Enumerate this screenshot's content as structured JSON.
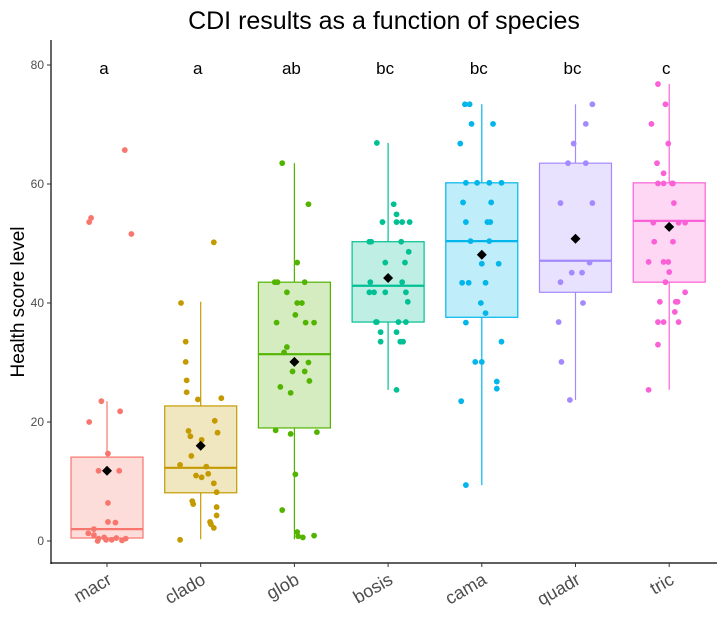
{
  "chart_data": {
    "type": "box",
    "title": "CDI results as a function of species",
    "xlabel": "",
    "ylabel": "Health score level",
    "ylim": [
      -4,
      84
    ],
    "yticks": [
      0,
      20,
      40,
      60,
      80
    ],
    "grid": false,
    "legend": "none",
    "categories": [
      "macr",
      "clado",
      "glob",
      "bosis",
      "cama",
      "quadr",
      "tric"
    ],
    "group_letters": [
      "a",
      "a",
      "ab",
      "bc",
      "bc",
      "bc",
      "c"
    ],
    "letters_y": 79,
    "colors": [
      "#F8766D",
      "#C49A00",
      "#53B400",
      "#00C094",
      "#00B6EB",
      "#A58AFF",
      "#FB61D7"
    ],
    "mean_marker_color": "#000000",
    "boxes": [
      {
        "name": "macr",
        "whisker_low": 0,
        "q1": 0.5,
        "median": 2,
        "q3": 14.1,
        "whisker_high": 23.5,
        "mean": 11.8
      },
      {
        "name": "clado",
        "whisker_low": 0.3,
        "q1": 8.1,
        "median": 12.3,
        "q3": 22.7,
        "whisker_high": 40.2,
        "mean": 16
      },
      {
        "name": "glob",
        "whisker_low": 0.3,
        "q1": 19,
        "median": 31.4,
        "q3": 43.5,
        "whisker_high": 63.5,
        "mean": 30.1
      },
      {
        "name": "bosis",
        "whisker_low": 25.4,
        "q1": 36.8,
        "median": 42.9,
        "q3": 50.3,
        "whisker_high": 66.9,
        "mean": 44.2
      },
      {
        "name": "cama",
        "whisker_low": 9.4,
        "q1": 37.6,
        "median": 50.4,
        "q3": 60.2,
        "whisker_high": 73.4,
        "mean": 48.1
      },
      {
        "name": "quadr",
        "whisker_low": 23.7,
        "q1": 41.8,
        "median": 47.1,
        "q3": 63.5,
        "whisker_high": 73.4,
        "mean": 50.8
      },
      {
        "name": "tric",
        "whisker_low": 25.4,
        "q1": 43.5,
        "median": 53.8,
        "q3": 60.2,
        "whisker_high": 76.8,
        "mean": 52.8
      }
    ],
    "points": [
      [
        [
          0.19,
          65.7
        ],
        [
          -0.17,
          54.3
        ],
        [
          -0.19,
          53.6
        ],
        [
          0.26,
          51.6
        ],
        [
          -0.06,
          23.5
        ],
        [
          0.14,
          21.8
        ],
        [
          -0.19,
          20
        ],
        [
          0.01,
          14.7
        ],
        [
          -0.09,
          11.8
        ],
        [
          0.13,
          11.8
        ],
        [
          0.01,
          6.4
        ],
        [
          0.01,
          3.2
        ],
        [
          0.09,
          3.1
        ],
        [
          -0.14,
          2
        ],
        [
          -0.2,
          1.3
        ],
        [
          -0.14,
          1
        ],
        [
          -0.09,
          0.4
        ],
        [
          -0.03,
          0.6
        ],
        [
          0.05,
          0.2
        ],
        [
          0.1,
          0.5
        ],
        [
          0.16,
          0.1
        ],
        [
          0.2,
          0.4
        ],
        [
          -0.01,
          0.2
        ],
        [
          -0.1,
          0
        ]
      ],
      [
        [
          0.14,
          50.2
        ],
        [
          -0.21,
          40
        ],
        [
          -0.16,
          33.5
        ],
        [
          -0.16,
          30.1
        ],
        [
          -0.15,
          27
        ],
        [
          -0.15,
          25
        ],
        [
          0.22,
          24
        ],
        [
          -0.03,
          23.8
        ],
        [
          0.15,
          20.2
        ],
        [
          -0.13,
          18.5
        ],
        [
          -0.11,
          17.6
        ],
        [
          0.18,
          18.2
        ],
        [
          0.01,
          17
        ],
        [
          -0.1,
          14.3
        ],
        [
          -0.22,
          12.8
        ],
        [
          0.06,
          12.5
        ],
        [
          0.08,
          11.3
        ],
        [
          -0.05,
          11
        ],
        [
          0.01,
          10.7
        ],
        [
          0.14,
          9.7
        ],
        [
          0.17,
          8.2
        ],
        [
          0.17,
          5.7
        ],
        [
          -0.09,
          6.7
        ],
        [
          -0.08,
          6.2
        ],
        [
          0.17,
          4.3
        ],
        [
          0.1,
          3.2
        ],
        [
          0.11,
          2.8
        ],
        [
          0.14,
          2.2
        ],
        [
          -0.22,
          0.2
        ]
      ],
      [
        [
          -0.13,
          63.5
        ],
        [
          0.15,
          56.6
        ],
        [
          0.03,
          46.8
        ],
        [
          -0.21,
          43.5
        ],
        [
          -0.18,
          43.5
        ],
        [
          0.11,
          43.5
        ],
        [
          -0.08,
          41.8
        ],
        [
          0.03,
          40
        ],
        [
          0.08,
          40
        ],
        [
          0.01,
          38
        ],
        [
          -0.19,
          36.7
        ],
        [
          0.12,
          36.7
        ],
        [
          0.21,
          36.7
        ],
        [
          -0.08,
          32.6
        ],
        [
          -0.11,
          31.7
        ],
        [
          0.15,
          30
        ],
        [
          -0.02,
          28.5
        ],
        [
          0.11,
          28.5
        ],
        [
          0.16,
          26.9
        ],
        [
          -0.15,
          25.9
        ],
        [
          -0.04,
          24.9
        ],
        [
          -0.2,
          18.6
        ],
        [
          -0.04,
          18
        ],
        [
          0.24,
          18.3
        ],
        [
          0.01,
          11.2
        ],
        [
          -0.13,
          5.2
        ],
        [
          0.03,
          1.5
        ],
        [
          0.04,
          0.8
        ],
        [
          0.09,
          0.6
        ],
        [
          0.21,
          0.9
        ]
      ],
      [
        [
          -0.12,
          66.9
        ],
        [
          0.06,
          56.6
        ],
        [
          0.09,
          54.9
        ],
        [
          -0.06,
          53.6
        ],
        [
          0.09,
          53.6
        ],
        [
          0.15,
          53.6
        ],
        [
          0.23,
          53.6
        ],
        [
          -0.2,
          50.3
        ],
        [
          -0.18,
          50.3
        ],
        [
          0.14,
          50.3
        ],
        [
          0.22,
          48.6
        ],
        [
          -0.03,
          46.8
        ],
        [
          0.18,
          46.8
        ],
        [
          -0.19,
          43.5
        ],
        [
          0.15,
          43.5
        ],
        [
          -0.2,
          41.8
        ],
        [
          -0.15,
          41.8
        ],
        [
          -0.03,
          41.8
        ],
        [
          0.19,
          41.8
        ],
        [
          0.21,
          40.2
        ],
        [
          -0.13,
          36.8
        ],
        [
          -0.12,
          36.8
        ],
        [
          0.11,
          36.8
        ],
        [
          0.19,
          36.8
        ],
        [
          -0.08,
          35.1
        ],
        [
          0.09,
          35.1
        ],
        [
          -0.08,
          33.5
        ],
        [
          0.13,
          33.5
        ],
        [
          0.16,
          33.5
        ],
        [
          0.09,
          25.4
        ]
      ],
      [
        [
          -0.18,
          73.4
        ],
        [
          -0.13,
          73.4
        ],
        [
          -0.11,
          70.1
        ],
        [
          0.12,
          70.1
        ],
        [
          -0.23,
          66.8
        ],
        [
          -0.17,
          60.2
        ],
        [
          -0.05,
          60.2
        ],
        [
          0.08,
          60.2
        ],
        [
          0.21,
          60.2
        ],
        [
          -0.2,
          56.9
        ],
        [
          0.1,
          56.9
        ],
        [
          -0.17,
          53.6
        ],
        [
          0.06,
          53.6
        ],
        [
          0.09,
          53.6
        ],
        [
          -0.12,
          50.4
        ],
        [
          0.08,
          50.4
        ],
        [
          0.0,
          46.6
        ],
        [
          0.18,
          46.6
        ],
        [
          -0.21,
          43.4
        ],
        [
          -0.14,
          43.4
        ],
        [
          0.04,
          43.4
        ],
        [
          -0.01,
          40
        ],
        [
          0.04,
          38.3
        ],
        [
          -0.17,
          36.7
        ],
        [
          0.21,
          33.5
        ],
        [
          -0.07,
          30.1
        ],
        [
          0.0,
          30.1
        ],
        [
          0.16,
          26.8
        ],
        [
          0.16,
          25.6
        ],
        [
          -0.22,
          23.5
        ],
        [
          -0.17,
          9.4
        ]
      ],
      [
        [
          0.18,
          73.4
        ],
        [
          0.11,
          70.1
        ],
        [
          -0.02,
          66.8
        ],
        [
          -0.08,
          63.5
        ],
        [
          0.11,
          63.5
        ],
        [
          -0.16,
          56.8
        ],
        [
          0.18,
          56.8
        ],
        [
          0.15,
          46.8
        ],
        [
          -0.04,
          45.1
        ],
        [
          0.07,
          45.1
        ],
        [
          -0.16,
          43.5
        ],
        [
          0.08,
          40
        ],
        [
          -0.18,
          36.8
        ],
        [
          -0.15,
          30.1
        ],
        [
          -0.06,
          23.7
        ]
      ],
      [
        [
          -0.12,
          76.8
        ],
        [
          -0.04,
          73.4
        ],
        [
          -0.19,
          70.1
        ],
        [
          -0.01,
          66.8
        ],
        [
          -0.13,
          63.5
        ],
        [
          -0.06,
          61.8
        ],
        [
          -0.12,
          60.1
        ],
        [
          -0.06,
          60.1
        ],
        [
          0.04,
          60.1
        ],
        [
          0.03,
          60.1
        ],
        [
          0.05,
          56.8
        ],
        [
          -0.17,
          53.5
        ],
        [
          0.1,
          53.5
        ],
        [
          0.17,
          53.5
        ],
        [
          -0.16,
          50.3
        ],
        [
          0.04,
          50.3
        ],
        [
          -0.22,
          46.9
        ],
        [
          -0.06,
          46.9
        ],
        [
          -0.01,
          46.9
        ],
        [
          0.0,
          45.2
        ],
        [
          -0.04,
          43.5
        ],
        [
          0.17,
          41.8
        ],
        [
          -0.1,
          40.2
        ],
        [
          0.07,
          40.2
        ],
        [
          0.09,
          40.2
        ],
        [
          0.06,
          38.5
        ],
        [
          -0.12,
          36.8
        ],
        [
          -0.06,
          36.8
        ],
        [
          0.1,
          36.8
        ],
        [
          -0.12,
          33
        ],
        [
          -0.22,
          25.4
        ]
      ]
    ]
  }
}
